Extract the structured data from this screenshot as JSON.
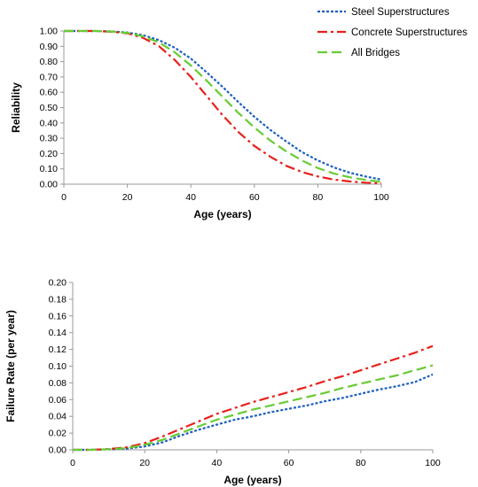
{
  "colors": {
    "steel": "#1f5fbf",
    "concrete": "#e8201a",
    "all": "#66cc33",
    "axis": "#999999"
  },
  "legend": [
    {
      "label": "Steel Superstructures",
      "color": "#1f5fbf",
      "dash": "dotted"
    },
    {
      "label": "Concrete Superstructures",
      "color": "#e8201a",
      "dash": "dash-dot"
    },
    {
      "label": "All Bridges",
      "color": "#66cc33",
      "dash": "dashed"
    }
  ],
  "chart_data": [
    {
      "type": "line",
      "xlabel": "Age (years)",
      "ylabel": "Reliability",
      "xlim": [
        0,
        100
      ],
      "ylim": [
        0,
        1
      ],
      "xticks": [
        0,
        20,
        40,
        60,
        80,
        100
      ],
      "yticks": [
        0,
        0.1,
        0.2,
        0.3,
        0.4,
        0.5,
        0.6,
        0.7,
        0.8,
        0.9,
        1.0
      ],
      "ytick_labels": [
        "0.00",
        "0.10",
        "0.20",
        "0.30",
        "0.40",
        "0.50",
        "0.60",
        "0.70",
        "0.80",
        "0.90",
        "1.00"
      ],
      "x": [
        0,
        10,
        15,
        20,
        25,
        30,
        35,
        40,
        45,
        50,
        55,
        60,
        65,
        70,
        75,
        80,
        85,
        90,
        95,
        100
      ],
      "grid": false,
      "legend_position": "top-right",
      "series": [
        {
          "name": "Steel Superstructures",
          "color": "#1f5fbf",
          "dash": "dotted",
          "values": [
            1.0,
            1.0,
            0.997,
            0.99,
            0.972,
            0.94,
            0.89,
            0.82,
            0.73,
            0.635,
            0.535,
            0.44,
            0.355,
            0.28,
            0.21,
            0.155,
            0.11,
            0.075,
            0.05,
            0.03
          ]
        },
        {
          "name": "Concrete Superstructures",
          "color": "#e8201a",
          "dash": "dash-dot",
          "values": [
            1.0,
            1.0,
            0.995,
            0.985,
            0.955,
            0.9,
            0.81,
            0.7,
            0.575,
            0.45,
            0.34,
            0.25,
            0.18,
            0.12,
            0.08,
            0.05,
            0.03,
            0.018,
            0.01,
            0.005
          ]
        },
        {
          "name": "All Bridges",
          "color": "#66cc33",
          "dash": "dashed",
          "values": [
            1.0,
            1.0,
            0.996,
            0.988,
            0.965,
            0.925,
            0.86,
            0.775,
            0.675,
            0.57,
            0.465,
            0.37,
            0.285,
            0.215,
            0.155,
            0.105,
            0.07,
            0.045,
            0.028,
            0.015
          ]
        }
      ]
    },
    {
      "type": "line",
      "xlabel": "Age (years)",
      "ylabel": "Failure Rate (per year)",
      "xlim": [
        0,
        100
      ],
      "ylim": [
        0,
        0.2
      ],
      "xticks": [
        0,
        20,
        40,
        60,
        80,
        100
      ],
      "yticks": [
        0,
        0.02,
        0.04,
        0.06,
        0.08,
        0.1,
        0.12,
        0.14,
        0.16,
        0.18,
        0.2
      ],
      "ytick_labels": [
        "0.00",
        "0.02",
        "0.04",
        "0.06",
        "0.08",
        "0.10",
        "0.12",
        "0.14",
        "0.16",
        "0.18",
        "0.20"
      ],
      "x": [
        0,
        5,
        10,
        15,
        20,
        25,
        30,
        35,
        40,
        45,
        50,
        55,
        60,
        65,
        70,
        75,
        80,
        85,
        90,
        95,
        100
      ],
      "grid": false,
      "series": [
        {
          "name": "Steel Superstructures",
          "color": "#1f5fbf",
          "dash": "dotted",
          "values": [
            0.0,
            0.0,
            0.0005,
            0.0015,
            0.004,
            0.009,
            0.017,
            0.024,
            0.03,
            0.036,
            0.04,
            0.045,
            0.049,
            0.053,
            0.058,
            0.062,
            0.067,
            0.072,
            0.076,
            0.081,
            0.09
          ]
        },
        {
          "name": "Concrete Superstructures",
          "color": "#e8201a",
          "dash": "dash-dot",
          "values": [
            0.0,
            0.0,
            0.001,
            0.003,
            0.008,
            0.016,
            0.025,
            0.034,
            0.043,
            0.05,
            0.057,
            0.063,
            0.069,
            0.075,
            0.082,
            0.088,
            0.095,
            0.102,
            0.109,
            0.116,
            0.124
          ]
        },
        {
          "name": "All Bridges",
          "color": "#66cc33",
          "dash": "dashed",
          "values": [
            0.0,
            0.0,
            0.0007,
            0.002,
            0.006,
            0.012,
            0.02,
            0.028,
            0.036,
            0.042,
            0.048,
            0.053,
            0.058,
            0.063,
            0.068,
            0.074,
            0.079,
            0.084,
            0.089,
            0.095,
            0.101
          ]
        }
      ]
    }
  ]
}
